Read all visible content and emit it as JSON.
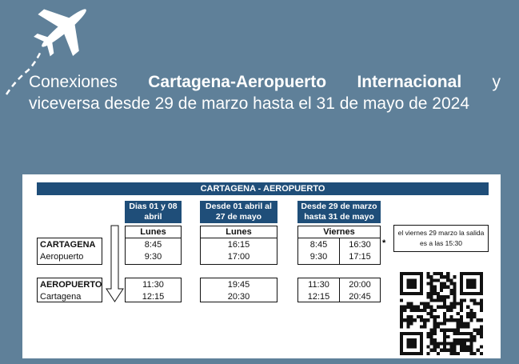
{
  "title": {
    "prefix": "Conexiones ",
    "bold": "Cartagena-Aeropuerto Internacional",
    "suffix": " y",
    "line2": "viceversa desde 29 de marzo hasta el 31 de mayo de 2024"
  },
  "table": {
    "header": "CARTAGENA - AEROPUERTO",
    "columns": [
      {
        "heading": "Dias 01 y 08 abril",
        "day": "Lunes",
        "outbound": [
          [
            "8:45",
            "9:30"
          ]
        ],
        "return": [
          [
            "11:30",
            "12:15"
          ]
        ]
      },
      {
        "heading": "Desde 01 abril al 27 de mayo",
        "day": "Lunes",
        "outbound": [
          [
            "16:15",
            "17:00"
          ]
        ],
        "return": [
          [
            "19:45",
            "20:30"
          ]
        ]
      },
      {
        "heading": "Desde 29 de marzo hasta 31 de mayo",
        "day": "Viernes",
        "outbound": [
          [
            "8:45",
            "9:30"
          ],
          [
            "16:30",
            "17:15"
          ]
        ],
        "return": [
          [
            "11:30",
            "12:15"
          ],
          [
            "20:00",
            "20:45"
          ]
        ]
      }
    ],
    "rows": [
      {
        "from": "CARTAGENA",
        "to": "Aeropuerto"
      },
      {
        "from": "AEROPUERTO",
        "to": "Cartagena"
      }
    ],
    "asterisk": "*",
    "note": "el viernes 29 marzo la salida es a las 15:30"
  },
  "colors": {
    "background": "#5f8099",
    "header": "#1f4e79"
  },
  "icons": [
    "airplane-icon",
    "down-arrow-icon",
    "qr-code"
  ]
}
